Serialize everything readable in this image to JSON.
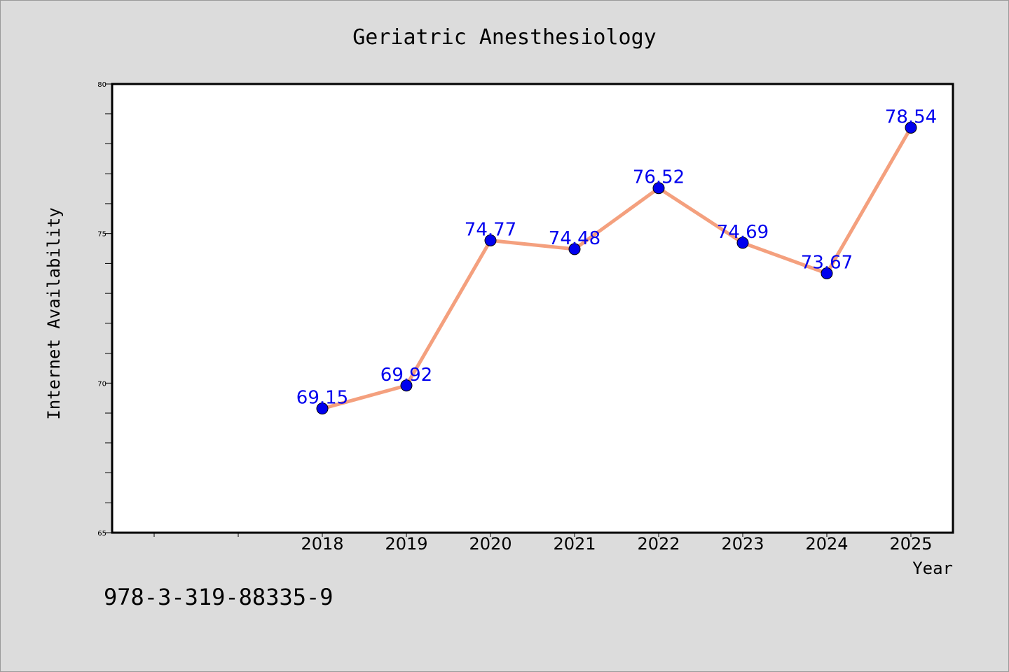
{
  "chart_data": {
    "type": "line",
    "title": "Geriatric Anesthesiology",
    "xlabel": "Year",
    "ylabel": "Internet Availability",
    "categories": [
      "2018",
      "2019",
      "2020",
      "2021",
      "2022",
      "2023",
      "2024",
      "2025"
    ],
    "series": [
      {
        "values": [
          69.15,
          69.92,
          74.77,
          74.48,
          76.52,
          74.69,
          73.67,
          78.54
        ],
        "data_labels": [
          "69.15",
          "69.92",
          "74.77",
          "74.48",
          "76.52",
          "74.69",
          "73.67",
          "78.54"
        ]
      }
    ],
    "ylim": [
      65,
      80
    ],
    "y_ticks": [
      65,
      70,
      75,
      80
    ],
    "y_tick_labels": [
      "65",
      "70",
      "75",
      "80"
    ],
    "grid": false,
    "colors": {
      "line": "#f4a07e",
      "marker": "#0000ee",
      "data_label": "#0000ee",
      "plot_background": "#ffffff",
      "page_background": "#dcdcdc"
    }
  },
  "footer_code": "978-3-319-88335-9"
}
